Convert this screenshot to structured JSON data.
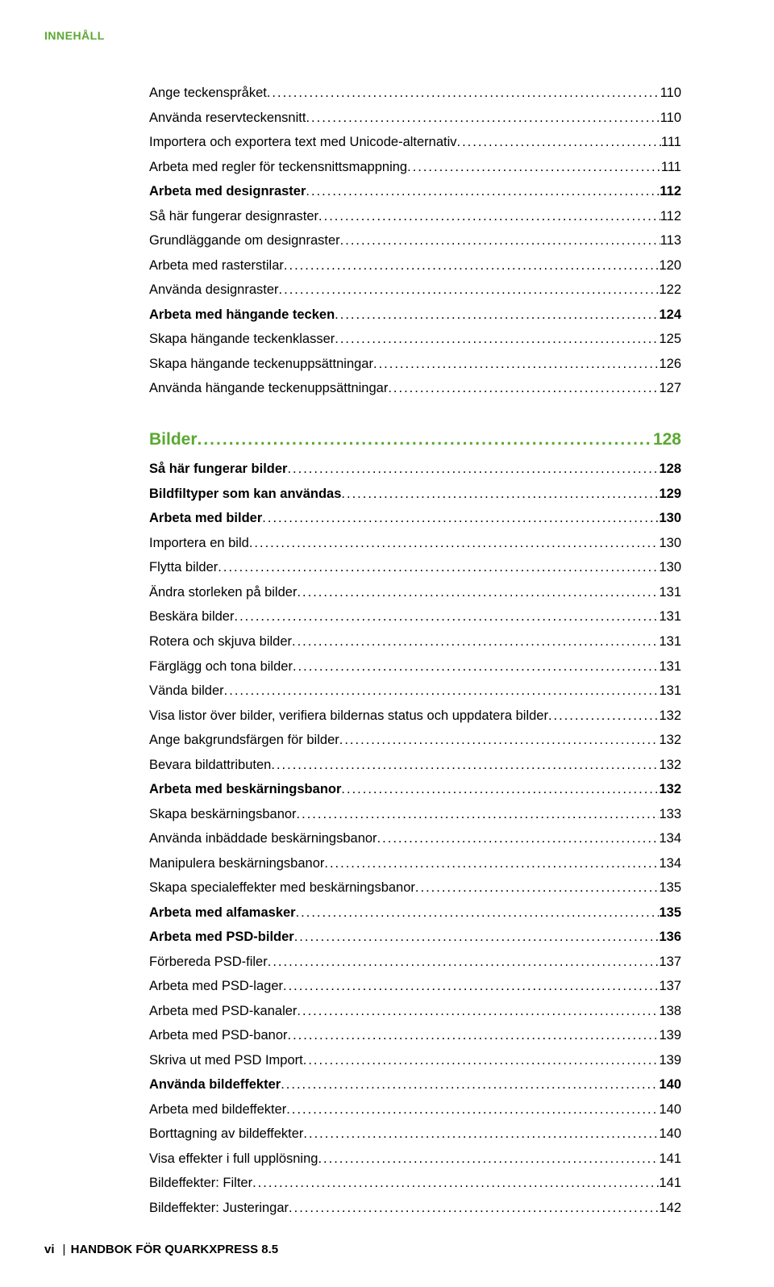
{
  "header": "INNEHÅLL",
  "footer_page": "vi",
  "footer_title": "HANDBOK FÖR QUARKXPRESS 8.5",
  "colors": {
    "accent": "#5aa832",
    "text": "#000000",
    "background": "#ffffff"
  },
  "typography": {
    "header_fontsize": 14,
    "section_fontsize": 21,
    "line_fontsize": 16.5,
    "footer_fontsize": 15,
    "line_height": 1.85
  },
  "entries": [
    {
      "type": "entry",
      "label": "Ange teckenspråket",
      "page": "110",
      "bold": false
    },
    {
      "type": "entry",
      "label": "Använda reservteckensnitt",
      "page": "110",
      "bold": false
    },
    {
      "type": "entry",
      "label": "Importera och exportera text med Unicode-alternativ",
      "page": "111",
      "bold": false
    },
    {
      "type": "entry",
      "label": "Arbeta med regler för teckensnittsmappning",
      "page": "111",
      "bold": false
    },
    {
      "type": "entry",
      "label": "Arbeta med designraster",
      "page": "112",
      "bold": true
    },
    {
      "type": "entry",
      "label": "Så här fungerar designraster",
      "page": "112",
      "bold": false
    },
    {
      "type": "entry",
      "label": "Grundläggande om designraster",
      "page": "113",
      "bold": false
    },
    {
      "type": "entry",
      "label": "Arbeta med rasterstilar",
      "page": "120",
      "bold": false
    },
    {
      "type": "entry",
      "label": "Använda designraster",
      "page": "122",
      "bold": false
    },
    {
      "type": "entry",
      "label": "Arbeta med hängande tecken",
      "page": "124",
      "bold": true
    },
    {
      "type": "entry",
      "label": "Skapa hängande teckenklasser",
      "page": "125",
      "bold": false
    },
    {
      "type": "entry",
      "label": "Skapa hängande teckenuppsättningar",
      "page": "126",
      "bold": false
    },
    {
      "type": "entry",
      "label": "Använda hängande teckenuppsättningar",
      "page": "127",
      "bold": false
    },
    {
      "type": "section",
      "label": "Bilder",
      "page": "128"
    },
    {
      "type": "entry",
      "label": "Så här fungerar bilder",
      "page": "128",
      "bold": true
    },
    {
      "type": "entry",
      "label": "Bildfiltyper som kan användas",
      "page": "129",
      "bold": true
    },
    {
      "type": "entry",
      "label": "Arbeta med bilder",
      "page": "130",
      "bold": true
    },
    {
      "type": "entry",
      "label": "Importera en bild",
      "page": "130",
      "bold": false
    },
    {
      "type": "entry",
      "label": "Flytta bilder",
      "page": "130",
      "bold": false
    },
    {
      "type": "entry",
      "label": "Ändra storleken på bilder",
      "page": "131",
      "bold": false
    },
    {
      "type": "entry",
      "label": "Beskära bilder",
      "page": "131",
      "bold": false
    },
    {
      "type": "entry",
      "label": "Rotera och skjuva bilder",
      "page": "131",
      "bold": false
    },
    {
      "type": "entry",
      "label": "Färglägg och tona bilder",
      "page": "131",
      "bold": false
    },
    {
      "type": "entry",
      "label": "Vända bilder",
      "page": "131",
      "bold": false
    },
    {
      "type": "entry",
      "label": "Visa listor över bilder, verifiera bildernas status och uppdatera bilder",
      "page": "132",
      "bold": false
    },
    {
      "type": "entry",
      "label": "Ange bakgrundsfärgen för bilder",
      "page": "132",
      "bold": false
    },
    {
      "type": "entry",
      "label": "Bevara bildattributen",
      "page": "132",
      "bold": false
    },
    {
      "type": "entry",
      "label": "Arbeta med beskärningsbanor",
      "page": "132",
      "bold": true
    },
    {
      "type": "entry",
      "label": "Skapa beskärningsbanor",
      "page": "133",
      "bold": false
    },
    {
      "type": "entry",
      "label": "Använda inbäddade beskärningsbanor",
      "page": "134",
      "bold": false
    },
    {
      "type": "entry",
      "label": "Manipulera beskärningsbanor",
      "page": "134",
      "bold": false
    },
    {
      "type": "entry",
      "label": "Skapa specialeffekter med beskärningsbanor",
      "page": "135",
      "bold": false
    },
    {
      "type": "entry",
      "label": "Arbeta med alfamasker",
      "page": "135",
      "bold": true
    },
    {
      "type": "entry",
      "label": "Arbeta med PSD-bilder",
      "page": "136",
      "bold": true
    },
    {
      "type": "entry",
      "label": "Förbereda PSD-filer",
      "page": "137",
      "bold": false
    },
    {
      "type": "entry",
      "label": "Arbeta med PSD-lager",
      "page": "137",
      "bold": false
    },
    {
      "type": "entry",
      "label": "Arbeta med PSD-kanaler",
      "page": "138",
      "bold": false
    },
    {
      "type": "entry",
      "label": "Arbeta med PSD-banor",
      "page": "139",
      "bold": false
    },
    {
      "type": "entry",
      "label": "Skriva ut med PSD Import",
      "page": "139",
      "bold": false
    },
    {
      "type": "entry",
      "label": "Använda bildeffekter",
      "page": "140",
      "bold": true
    },
    {
      "type": "entry",
      "label": "Arbeta med bildeffekter",
      "page": "140",
      "bold": false
    },
    {
      "type": "entry",
      "label": "Borttagning av bildeffekter",
      "page": "140",
      "bold": false
    },
    {
      "type": "entry",
      "label": "Visa effekter i full upplösning",
      "page": "141",
      "bold": false
    },
    {
      "type": "entry",
      "label": "Bildeffekter: Filter",
      "page": "141",
      "bold": false
    },
    {
      "type": "entry",
      "label": "Bildeffekter: Justeringar",
      "page": "142",
      "bold": false
    }
  ]
}
